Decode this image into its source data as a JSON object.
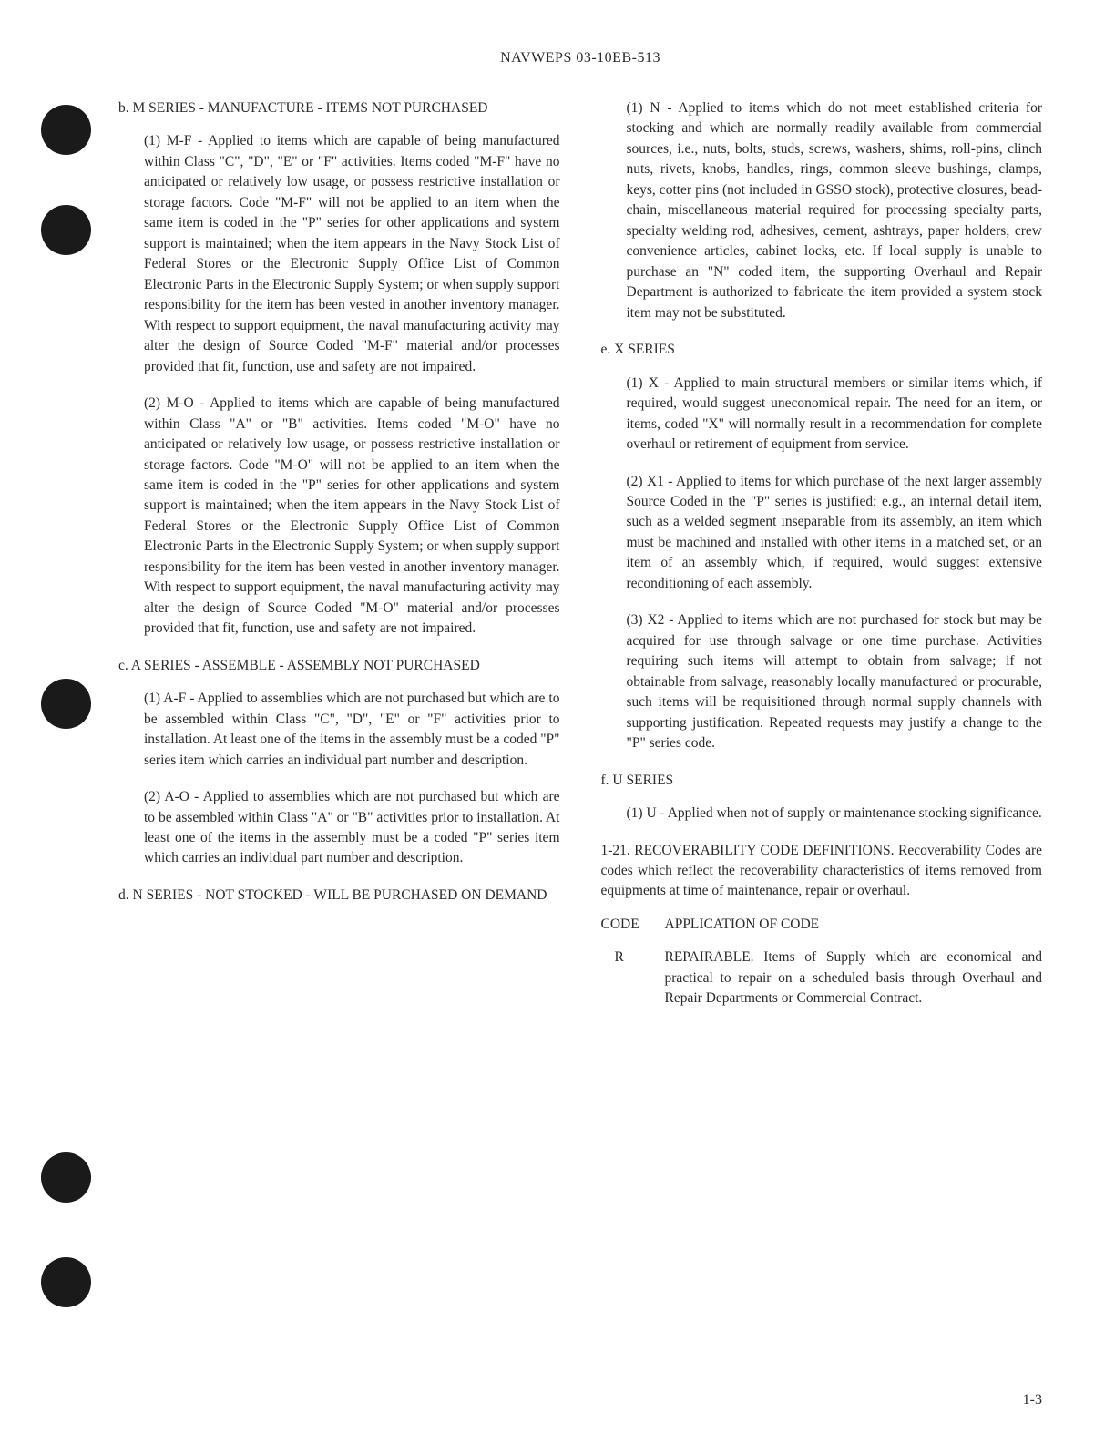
{
  "header": "NAVWEPS 03-10EB-513",
  "page_number": "1-3",
  "left_column": {
    "section_b": {
      "header": "b. M SERIES - MANUFACTURE - ITEMS NOT PURCHASED",
      "items": [
        {
          "marker": "(1)",
          "text": "M-F - Applied to items which are capable of being manufactured within Class \"C\", \"D\", \"E\" or \"F\" activities. Items coded \"M-F\" have no anticipated or relatively low usage, or possess restrictive installation or storage factors. Code \"M-F\" will not be applied to an item when the same item is coded in the \"P\" series for other applications and system support is maintained; when the item appears in the Navy Stock List of Federal Stores or the Electronic Supply Office List of Common Electronic Parts in the Electronic Supply System; or when supply support responsibility for the item has been vested in another inventory manager. With respect to support equipment, the naval manufacturing activity may alter the design of Source Coded \"M-F\" material and/or processes provided that fit, function, use and safety are not impaired."
        },
        {
          "marker": "(2)",
          "text": "M-O - Applied to items which are capable of being manufactured within Class \"A\" or \"B\" activities. Items coded \"M-O\" have no anticipated or relatively low usage, or possess restrictive installation or storage factors. Code \"M-O\" will not be applied to an item when the same item is coded in the \"P\" series for other applications and system support is maintained; when the item appears in the Navy Stock List of Federal Stores or the Electronic Supply Office List of Common Electronic Parts in the Electronic Supply System; or when supply support responsibility for the item has been vested in another inventory manager. With respect to support equipment, the naval manufacturing activity may alter the design of Source Coded \"M-O\" material and/or processes provided that fit, function, use and safety are not impaired."
        }
      ]
    },
    "section_c": {
      "header": "c. A SERIES - ASSEMBLE - ASSEMBLY NOT PURCHASED",
      "items": [
        {
          "marker": "(1)",
          "text": "A-F - Applied to assemblies which are not purchased but which are to be assembled within Class \"C\", \"D\", \"E\" or \"F\" activities prior to installation. At least one of the items in the assembly must be a coded \"P\" series item which carries an individual part number and description."
        },
        {
          "marker": "(2)",
          "text": "A-O - Applied to assemblies which are not purchased but which are to be assembled within Class \"A\" or \"B\" activities prior to installation. At least one of the items in the assembly must be a coded \"P\" series item which carries an individual part number and description."
        }
      ]
    },
    "section_d": {
      "header": "d. N SERIES - NOT STOCKED - WILL BE PURCHASED ON DEMAND"
    }
  },
  "right_column": {
    "section_d_items": [
      {
        "marker": "(1)",
        "text": "N - Applied to items which do not meet established criteria for stocking and which are normally readily available from commercial sources, i.e., nuts, bolts, studs, screws, washers, shims, roll-pins, clinch nuts, rivets, knobs, handles, rings, common sleeve bushings, clamps, keys, cotter pins (not included in GSSO stock), protective closures, bead-chain, miscellaneous material required for processing specialty parts, specialty welding rod, adhesives, cement, ashtrays, paper holders, crew convenience articles, cabinet locks, etc. If local supply is unable to purchase an \"N\" coded item, the supporting Overhaul and Repair Department is authorized to fabricate the item provided a system stock item may not be substituted."
      }
    ],
    "section_e": {
      "header": "e. X SERIES",
      "items": [
        {
          "marker": "(1)",
          "text": "X - Applied to main structural members or similar items which, if required, would suggest uneconomical repair. The need for an item, or items, coded \"X\" will normally result in a recommendation for complete overhaul or retirement of equipment from service."
        },
        {
          "marker": "(2)",
          "text": "X1 - Applied to items for which purchase of the next larger assembly Source Coded in the \"P\" series is justified; e.g., an internal detail item, such as a welded segment inseparable from its assembly, an item which must be machined and installed with other items in a matched set, or an item of an assembly which, if required, would suggest extensive reconditioning of each assembly."
        },
        {
          "marker": "(3)",
          "text": "X2 - Applied to items which are not purchased for stock but may be acquired for use through salvage or one time purchase. Activities requiring such items will attempt to obtain from salvage; if not obtainable from salvage, reasonably locally manufactured or procurable, such items will be requisitioned through normal supply channels with supporting justification. Repeated requests may justify a change to the \"P\" series code."
        }
      ]
    },
    "section_f": {
      "header": "f. U SERIES",
      "items": [
        {
          "marker": "(1)",
          "text": "U - Applied when not of supply or maintenance stocking significance."
        }
      ]
    },
    "para_1_21": "1-21. RECOVERABILITY CODE DEFINITIONS. Recoverability Codes are codes which reflect the recoverability characteristics of items removed from equipments at time of maintenance, repair or overhaul.",
    "code_table": {
      "header_code": "CODE",
      "header_app": "APPLICATION OF CODE",
      "rows": [
        {
          "code": "R",
          "text": "REPAIRABLE. Items of Supply which are economical and practical to repair on a scheduled basis through Overhaul and Repair Departments or Commercial Contract."
        }
      ]
    }
  }
}
